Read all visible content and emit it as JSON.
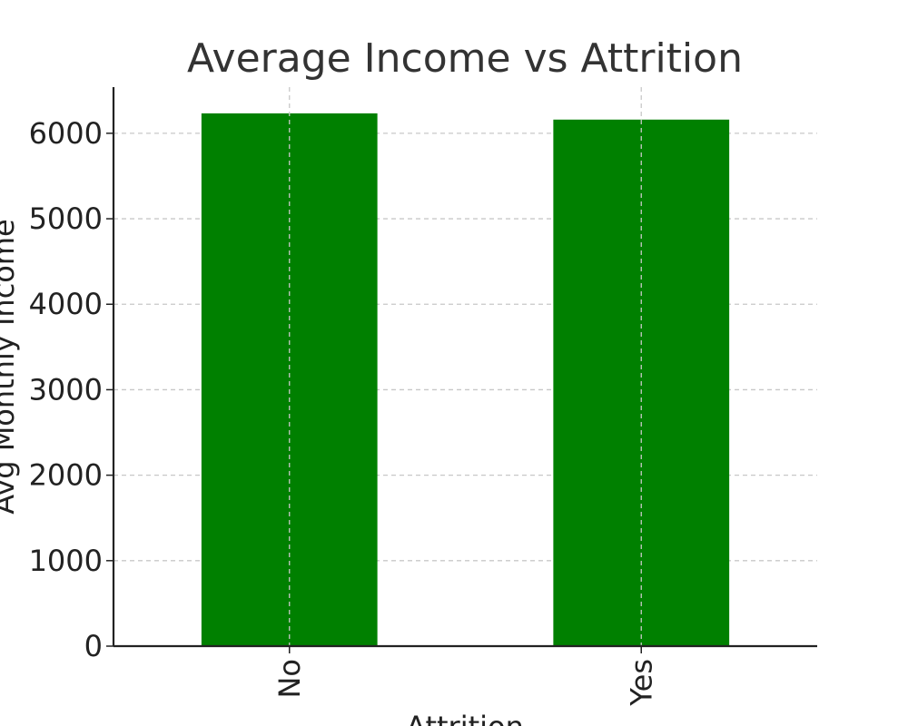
{
  "chart_data": {
    "type": "bar",
    "title": "Average Income vs Attrition",
    "xlabel": "Attrition",
    "ylabel": "Avg Monthly Income",
    "categories": [
      "No",
      "Yes"
    ],
    "values": [
      6233,
      6160
    ],
    "ylim": [
      0,
      6540
    ],
    "yticks": [
      "0",
      "1000",
      "2000",
      "3000",
      "4000",
      "5000",
      "6000"
    ],
    "grid": true,
    "bar_color": "#008000",
    "grid_color": "#c8c8c8",
    "axis_color": "#222222"
  }
}
